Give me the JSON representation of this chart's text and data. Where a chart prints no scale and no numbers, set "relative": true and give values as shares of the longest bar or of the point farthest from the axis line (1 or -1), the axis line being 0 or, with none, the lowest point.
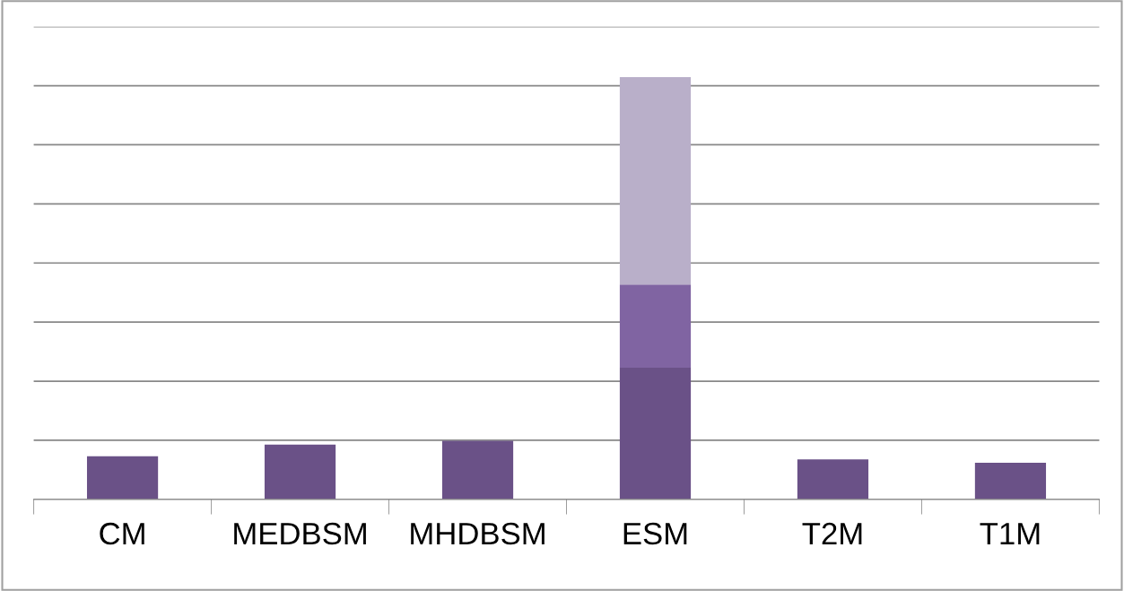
{
  "chart_data": {
    "type": "bar",
    "relative": true,
    "stacked": true,
    "grid": "y",
    "legend": false,
    "categories": [
      "CM",
      "MEDBSM",
      "MHDBSM",
      "ESM",
      "T2M",
      "T1M"
    ],
    "series": [
      {
        "color": "#6a5187",
        "values": [
          0.102,
          0.13,
          0.139,
          0.312,
          0.095,
          0.087
        ]
      },
      {
        "color": "#8064a2",
        "values": [
          null,
          null,
          null,
          0.197,
          null,
          null
        ]
      },
      {
        "color": "#b9afc9",
        "values": [
          null,
          null,
          null,
          0.491,
          null,
          null
        ]
      }
    ]
  }
}
